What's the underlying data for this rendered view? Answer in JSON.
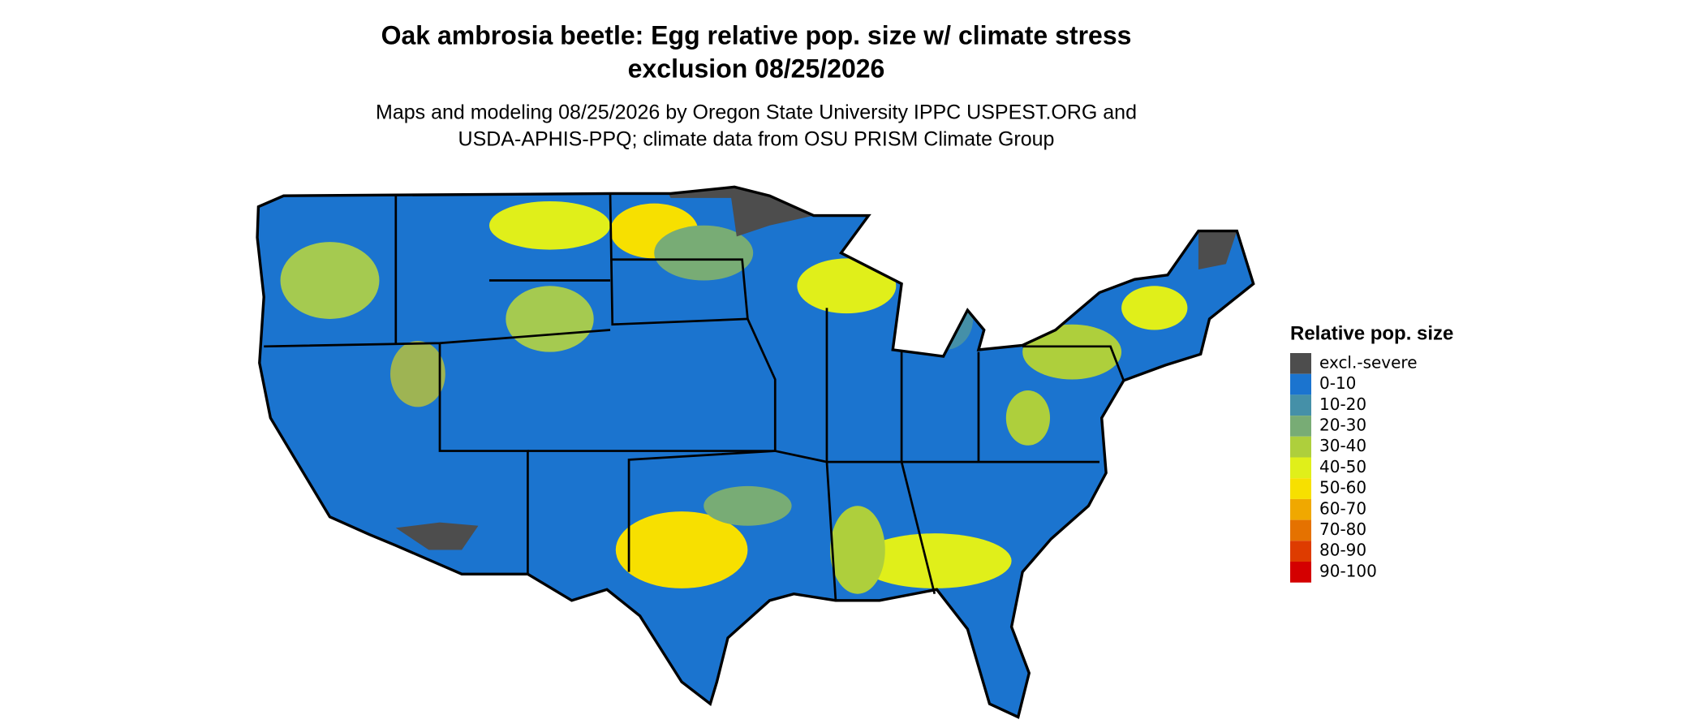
{
  "header": {
    "title": [
      "Oak ambrosia beetle: Egg relative pop. size w/ climate stress",
      "exclusion 08/25/2026"
    ],
    "subtitle": [
      "Maps and modeling 08/25/2026 by Oregon State University IPPC USPEST.ORG and",
      "USDA-APHIS-PPQ; climate data from OSU PRISM Climate Group"
    ]
  },
  "legend": {
    "title": "Relative pop. size",
    "items": [
      {
        "label": "excl.-severe",
        "color": "#4d4d4d"
      },
      {
        "label": "0-10",
        "color": "#1b74cf"
      },
      {
        "label": "10-20",
        "color": "#4590a8"
      },
      {
        "label": "20-30",
        "color": "#78ac75"
      },
      {
        "label": "30-40",
        "color": "#aecf3c"
      },
      {
        "label": "40-50",
        "color": "#e0ef1a"
      },
      {
        "label": "50-60",
        "color": "#f7e000"
      },
      {
        "label": "60-70",
        "color": "#f0a800"
      },
      {
        "label": "70-80",
        "color": "#e57200"
      },
      {
        "label": "80-90",
        "color": "#de3c00"
      },
      {
        "label": "90-100",
        "color": "#d40000"
      }
    ]
  }
}
